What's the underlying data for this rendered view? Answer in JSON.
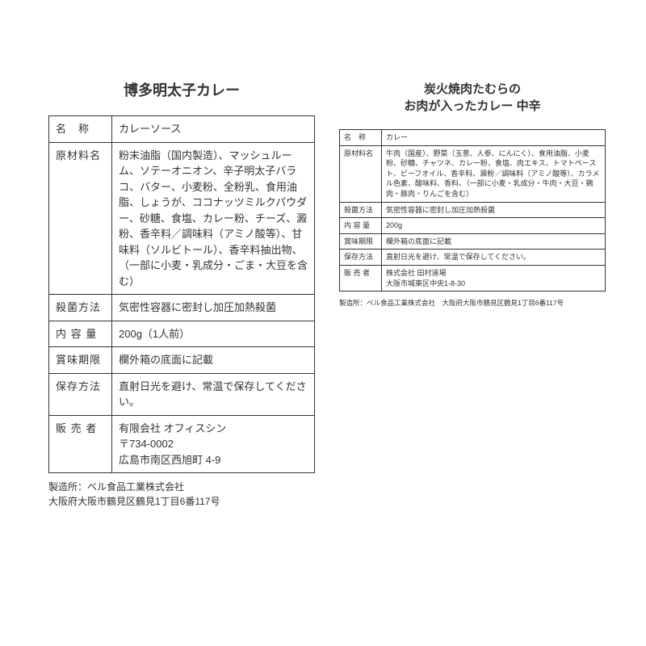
{
  "products": [
    {
      "title": "博多明太子カレー",
      "rows": [
        {
          "label": "名　称",
          "value": "カレーソース"
        },
        {
          "label": "原材料名",
          "value": "粉末油脂（国内製造）、マッシュルーム、ソテーオニオン、辛子明太子バラコ、バター、小麦粉、全粉乳、食用油脂、しょうが、ココナッツミルクパウダー、砂糖、食塩、カレー粉、チーズ、澱粉、香辛料／調味料（アミノ酸等）、甘味料（ソルビトール）、香辛料抽出物、（一部に小麦・乳成分・ごま・大豆を含む）"
        },
        {
          "label": "殺菌方法",
          "value": "気密性容器に密封し加圧加熱殺菌"
        },
        {
          "label": "内 容 量",
          "value": "200g（1人前）"
        },
        {
          "label": "賞味期限",
          "value": "欄外箱の底面に記載"
        },
        {
          "label": "保存方法",
          "value": "直射日光を避け、常温で保存してください。"
        },
        {
          "label": "販 売 者",
          "value": "有限会社 オフィスシン\n〒734-0002\n広島市南区西旭町 4-9"
        }
      ],
      "footer": "製造所：ベル食品工業株式会社\n大阪府大阪市鶴見区鶴見1丁目6番117号"
    },
    {
      "title": "炭火焼肉たむらの\nお肉が入ったカレー 中辛",
      "rows": [
        {
          "label": "名　称",
          "value": "カレー"
        },
        {
          "label": "原材料名",
          "value": "牛肉（国産）、野菜（玉葱、人参、にんにく）、食用油脂、小麦粉、砂糖、チャツネ、カレー粉、食塩、肉エキス、トマトペースト、ビーフオイル、香辛料、澱粉／調味料（アミノ酸等）、カラメル色素、酸味料、香料、（一部に小麦・乳成分・牛肉・大豆・鶏肉・豚肉・りんごを含む）"
        },
        {
          "label": "殺菌方法",
          "value": "気密性容器に密封し加圧加熱殺菌"
        },
        {
          "label": "内 容 量",
          "value": "200g"
        },
        {
          "label": "賞味期限",
          "value": "欄外箱の底面に記載"
        },
        {
          "label": "保存方法",
          "value": "直射日光を避け、常温で保存してください。"
        },
        {
          "label": "販 売 者",
          "value": "株式会社 田村道場\n大阪市城東区中央1-8-30"
        }
      ],
      "footer": "製造所：ベル食品工業株式会社　大阪府大阪市鶴見区鶴見1丁目6番117号"
    }
  ]
}
